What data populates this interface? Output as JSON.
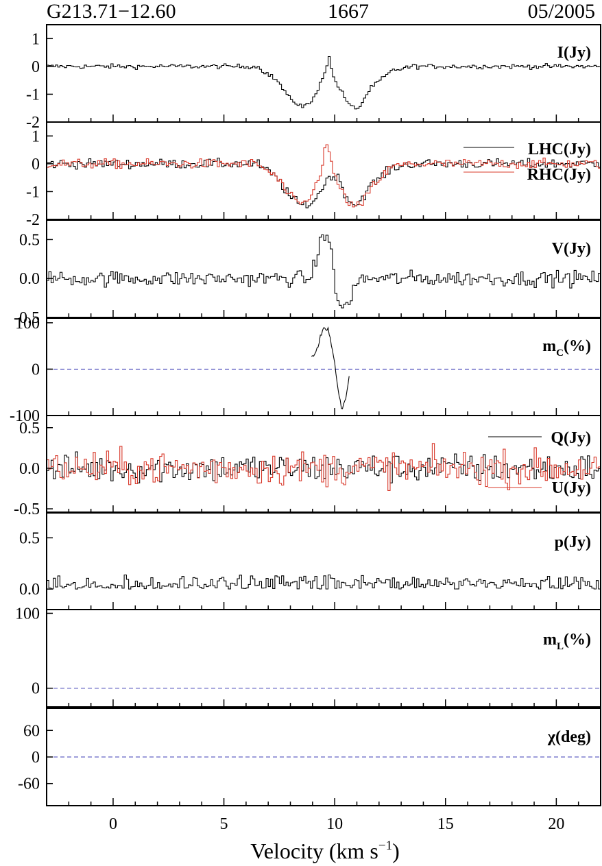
{
  "header": {
    "source": "G213.71−12.60",
    "line": "1667",
    "date": "05/2005"
  },
  "colors": {
    "black_trace": "#000000",
    "red_trace": "#d8382a",
    "zero_line": "#3c3cb4"
  },
  "chart_data": {
    "type": "line",
    "style": "step",
    "x_axis": {
      "label": "Velocity (km s",
      "label_superscript": "−1",
      "label_close": ")",
      "range": [
        -3.0,
        22.0
      ],
      "ticks": [
        0,
        5,
        10,
        15,
        20
      ],
      "tick_labels": [
        "0",
        "5",
        "10",
        "15",
        "20"
      ],
      "minor_step": 1
    },
    "panels": [
      {
        "id": "I",
        "ylim": [
          -2,
          1.5
        ],
        "yticks": [
          1,
          0,
          -1,
          -2
        ],
        "ytick_labels": [
          "1",
          "0",
          "-1",
          "-2"
        ],
        "series_labels": [
          {
            "text": "I(Jy)",
            "sub": "",
            "rest": ""
          }
        ],
        "series": [
          {
            "name": "I",
            "color": "black",
            "noise": 0.06,
            "profile": [
              [
                -3,
                0
              ],
              [
                6.5,
                0
              ],
              [
                7.4,
                -0.5
              ],
              [
                8.0,
                -1.2
              ],
              [
                8.6,
                -1.45
              ],
              [
                9.0,
                -1.25
              ],
              [
                9.5,
                -0.3
              ],
              [
                9.75,
                0.3
              ],
              [
                9.95,
                -0.4
              ],
              [
                10.3,
                -0.9
              ],
              [
                10.7,
                -1.45
              ],
              [
                11.1,
                -1.5
              ],
              [
                11.6,
                -0.8
              ],
              [
                12.6,
                -0.15
              ],
              [
                13.5,
                0
              ],
              [
                22,
                0
              ]
            ]
          }
        ],
        "zero_line": false
      },
      {
        "id": "LHC_RHC",
        "ylim": [
          -2,
          1.5
        ],
        "yticks": [
          1,
          0,
          -1,
          -2
        ],
        "ytick_labels": [
          "1",
          "0",
          "-1",
          "-2"
        ],
        "series_labels": [
          {
            "text": "LHC(Jy)",
            "sub": "",
            "rest": ""
          },
          {
            "text": "RHC(Jy)",
            "sub": "",
            "rest": ""
          }
        ],
        "series": [
          {
            "name": "LHC",
            "color": "black",
            "noise": 0.12,
            "profile": [
              [
                -3,
                0
              ],
              [
                6.5,
                0
              ],
              [
                7.4,
                -0.5
              ],
              [
                8.0,
                -1.2
              ],
              [
                8.5,
                -1.5
              ],
              [
                9.0,
                -1.4
              ],
              [
                9.5,
                -0.8
              ],
              [
                9.8,
                -0.4
              ],
              [
                10.2,
                -0.55
              ],
              [
                10.6,
                -1.3
              ],
              [
                11.0,
                -1.5
              ],
              [
                11.6,
                -0.8
              ],
              [
                12.6,
                -0.15
              ],
              [
                13.5,
                0
              ],
              [
                22,
                0
              ]
            ]
          },
          {
            "name": "RHC",
            "color": "red",
            "noise": 0.12,
            "profile": [
              [
                -3,
                0
              ],
              [
                6.5,
                0
              ],
              [
                7.4,
                -0.5
              ],
              [
                8.0,
                -1.2
              ],
              [
                8.5,
                -1.5
              ],
              [
                9.0,
                -1.1
              ],
              [
                9.4,
                -0.2
              ],
              [
                9.6,
                0.85
              ],
              [
                9.9,
                -0.2
              ],
              [
                10.3,
                -1.0
              ],
              [
                10.8,
                -1.55
              ],
              [
                11.2,
                -1.5
              ],
              [
                11.7,
                -0.8
              ],
              [
                12.6,
                -0.1
              ],
              [
                13.5,
                0
              ],
              [
                22,
                0
              ]
            ]
          }
        ],
        "zero_line": false
      },
      {
        "id": "V",
        "ylim": [
          -0.5,
          0.75
        ],
        "yticks": [
          0.5,
          0.0,
          -0.5
        ],
        "ytick_labels": [
          "0.5",
          "0.0",
          "-0.5"
        ],
        "series_labels": [
          {
            "text": "V(Jy)",
            "sub": "",
            "rest": ""
          }
        ],
        "series": [
          {
            "name": "V",
            "color": "black",
            "noise": 0.07,
            "profile": [
              [
                -3,
                0
              ],
              [
                8.9,
                0
              ],
              [
                9.2,
                0.25
              ],
              [
                9.45,
                0.6
              ],
              [
                9.7,
                0.55
              ],
              [
                9.9,
                0.2
              ],
              [
                10.05,
                -0.15
              ],
              [
                10.3,
                -0.4
              ],
              [
                10.55,
                -0.35
              ],
              [
                10.9,
                -0.1
              ],
              [
                11.3,
                0
              ],
              [
                22,
                0
              ]
            ]
          }
        ],
        "zero_line": false
      },
      {
        "id": "mC",
        "ylim": [
          -100,
          110
        ],
        "yticks": [
          100,
          0,
          -100
        ],
        "ytick_labels": [
          "100",
          "0",
          "-100"
        ],
        "series_labels": [
          {
            "text": "m",
            "sub": "C",
            "rest": "(%)"
          }
        ],
        "series": [
          {
            "name": "mC",
            "color": "black",
            "noise": 5,
            "smooth": true,
            "profile": [
              [
                8.95,
                22
              ],
              [
                9.2,
                45
              ],
              [
                9.45,
                85
              ],
              [
                9.7,
                85
              ],
              [
                9.95,
                30
              ],
              [
                10.15,
                -40
              ],
              [
                10.3,
                -85
              ],
              [
                10.45,
                -70
              ],
              [
                10.65,
                -20
              ],
              [
                10.7,
                -10
              ]
            ]
          }
        ],
        "zero_line": true
      },
      {
        "id": "QU",
        "ylim": [
          -0.55,
          0.65
        ],
        "yticks": [
          0.5,
          0.0,
          -0.5
        ],
        "ytick_labels": [
          "0.5",
          "0.0",
          "-0.5"
        ],
        "series_labels": [
          {
            "text": "Q(Jy)",
            "sub": "",
            "rest": ""
          },
          {
            "text": "U(Jy)",
            "sub": "",
            "rest": ""
          }
        ],
        "series": [
          {
            "name": "Q",
            "color": "black",
            "noise": 0.13,
            "profile": [
              [
                -3,
                0
              ],
              [
                22,
                0
              ]
            ]
          },
          {
            "name": "U",
            "color": "red",
            "noise": 0.15,
            "profile": [
              [
                -3,
                0
              ],
              [
                22,
                0
              ]
            ]
          }
        ],
        "zero_line": false
      },
      {
        "id": "p",
        "ylim": [
          -0.2,
          0.75
        ],
        "yticks": [
          0.5,
          0.0
        ],
        "ytick_labels": [
          "0.5",
          "0.0"
        ],
        "series_labels": [
          {
            "text": "p(Jy)",
            "sub": "",
            "rest": ""
          }
        ],
        "series": [
          {
            "name": "p",
            "color": "black",
            "noise": 0.09,
            "absolute": true,
            "profile": [
              [
                -3,
                0
              ],
              [
                22,
                0
              ]
            ]
          }
        ],
        "zero_line": false
      },
      {
        "id": "mL",
        "ylim": [
          -25,
          105
        ],
        "yticks": [
          100,
          0
        ],
        "ytick_labels": [
          "100",
          "0"
        ],
        "series_labels": [
          {
            "text": "m",
            "sub": "L",
            "rest": "(%)"
          }
        ],
        "series": [],
        "zero_line": true
      },
      {
        "id": "chi",
        "ylim": [
          -110,
          110
        ],
        "yticks": [
          60,
          0,
          -60
        ],
        "ytick_labels": [
          "60",
          "0",
          "-60"
        ],
        "series_labels": [
          {
            "text": "χ(deg)",
            "sub": "",
            "rest": ""
          }
        ],
        "series": [],
        "zero_line": true
      }
    ]
  }
}
